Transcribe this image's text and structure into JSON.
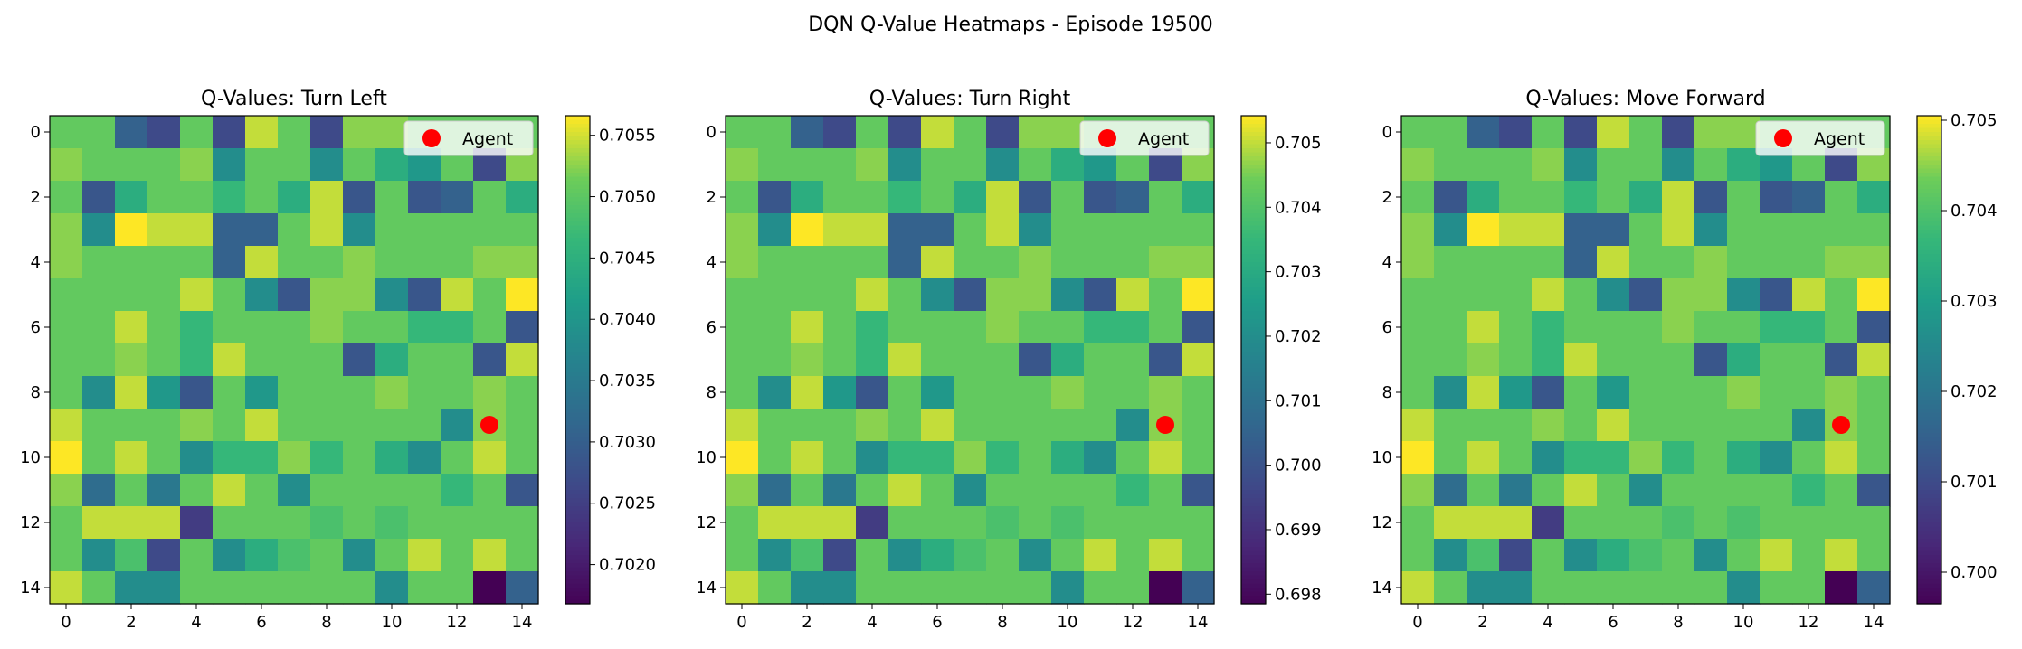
{
  "suptitle": "DQN Q-Value Heatmaps - Episode 19500",
  "colors": {
    "agent_marker": "#ff0000",
    "colormap": "viridis",
    "axes_edge": "#000000"
  },
  "chart_data": [
    {
      "type": "heatmap",
      "title": "Q-Values: Turn Left",
      "grid_size": 15,
      "x_ticks": [
        0,
        2,
        4,
        6,
        8,
        10,
        12,
        14
      ],
      "y_ticks": [
        0,
        2,
        4,
        6,
        8,
        10,
        12,
        14
      ],
      "colorbar": {
        "vmin": 0.70168,
        "vmax": 0.70566,
        "ticks": [
          "0.7020",
          "0.7025",
          "0.7030",
          "0.7035",
          "0.7040",
          "0.7045",
          "0.7050",
          "0.7055"
        ]
      },
      "legend": {
        "label": "Agent",
        "position": "upper right"
      },
      "agent": {
        "row": 9,
        "col": 13
      }
    },
    {
      "type": "heatmap",
      "title": "Q-Values: Turn Right",
      "grid_size": 15,
      "x_ticks": [
        0,
        2,
        4,
        6,
        8,
        10,
        12,
        14
      ],
      "y_ticks": [
        0,
        2,
        4,
        6,
        8,
        10,
        12,
        14
      ],
      "colorbar": {
        "vmin": 0.69785,
        "vmax": 0.70542,
        "ticks": [
          "0.698",
          "0.699",
          "0.700",
          "0.701",
          "0.702",
          "0.703",
          "0.704",
          "0.705"
        ]
      },
      "legend": {
        "label": "Agent",
        "position": "upper right"
      },
      "agent": {
        "row": 9,
        "col": 13
      }
    },
    {
      "type": "heatmap",
      "title": "Q-Values: Move Forward",
      "grid_size": 15,
      "x_ticks": [
        0,
        2,
        4,
        6,
        8,
        10,
        12,
        14
      ],
      "y_ticks": [
        0,
        2,
        4,
        6,
        8,
        10,
        12,
        14
      ],
      "colorbar": {
        "vmin": 0.69965,
        "vmax": 0.70505,
        "ticks": [
          "0.700",
          "0.701",
          "0.702",
          "0.703",
          "0.704",
          "0.705"
        ]
      },
      "legend": {
        "label": "Agent",
        "position": "upper right"
      },
      "agent": {
        "row": 9,
        "col": 13
      }
    }
  ],
  "normalized_grid": [
    [
      0.85,
      0.85,
      0.35,
      0.25,
      0.85,
      0.25,
      0.95,
      0.85,
      0.25,
      0.9,
      0.9,
      0.85,
      0.85,
      0.85,
      0.85
    ],
    [
      0.9,
      0.85,
      0.85,
      0.85,
      0.9,
      0.55,
      0.85,
      0.85,
      0.55,
      0.85,
      0.7,
      0.6,
      0.85,
      0.25,
      0.9
    ],
    [
      0.85,
      0.3,
      0.7,
      0.85,
      0.85,
      0.75,
      0.85,
      0.7,
      0.95,
      0.3,
      0.85,
      0.3,
      0.35,
      0.85,
      0.7
    ],
    [
      0.9,
      0.55,
      1.0,
      0.95,
      0.95,
      0.35,
      0.35,
      0.85,
      0.95,
      0.55,
      0.85,
      0.85,
      0.85,
      0.85,
      0.85
    ],
    [
      0.9,
      0.85,
      0.85,
      0.85,
      0.85,
      0.35,
      0.95,
      0.85,
      0.85,
      0.9,
      0.85,
      0.85,
      0.85,
      0.9,
      0.9
    ],
    [
      0.85,
      0.85,
      0.85,
      0.85,
      0.95,
      0.85,
      0.55,
      0.3,
      0.9,
      0.9,
      0.55,
      0.3,
      0.95,
      0.85,
      1.0
    ],
    [
      0.85,
      0.85,
      0.95,
      0.85,
      0.75,
      0.85,
      0.85,
      0.85,
      0.9,
      0.85,
      0.85,
      0.75,
      0.75,
      0.85,
      0.3
    ],
    [
      0.85,
      0.85,
      0.9,
      0.85,
      0.75,
      0.95,
      0.85,
      0.85,
      0.85,
      0.3,
      0.7,
      0.85,
      0.85,
      0.3,
      0.95
    ],
    [
      0.85,
      0.55,
      0.95,
      0.6,
      0.3,
      0.85,
      0.6,
      0.85,
      0.85,
      0.85,
      0.9,
      0.85,
      0.85,
      0.9,
      0.85
    ],
    [
      0.95,
      0.85,
      0.85,
      0.85,
      0.9,
      0.85,
      0.95,
      0.85,
      0.85,
      0.85,
      0.85,
      0.85,
      0.55,
      0.9,
      0.85
    ],
    [
      1.0,
      0.85,
      0.95,
      0.85,
      0.55,
      0.75,
      0.75,
      0.9,
      0.75,
      0.85,
      0.7,
      0.55,
      0.85,
      0.95,
      0.85
    ],
    [
      0.9,
      0.4,
      0.85,
      0.45,
      0.85,
      0.95,
      0.85,
      0.55,
      0.85,
      0.85,
      0.85,
      0.85,
      0.75,
      0.85,
      0.3
    ],
    [
      0.85,
      0.95,
      0.95,
      0.95,
      0.2,
      0.85,
      0.85,
      0.85,
      0.8,
      0.85,
      0.8,
      0.85,
      0.85,
      0.85,
      0.85
    ],
    [
      0.85,
      0.55,
      0.8,
      0.25,
      0.85,
      0.55,
      0.7,
      0.8,
      0.85,
      0.55,
      0.85,
      0.95,
      0.85,
      0.95,
      0.85
    ],
    [
      0.95,
      0.85,
      0.55,
      0.55,
      0.85,
      0.85,
      0.85,
      0.85,
      0.85,
      0.85,
      0.55,
      0.85,
      0.85,
      0.0,
      0.35
    ]
  ]
}
